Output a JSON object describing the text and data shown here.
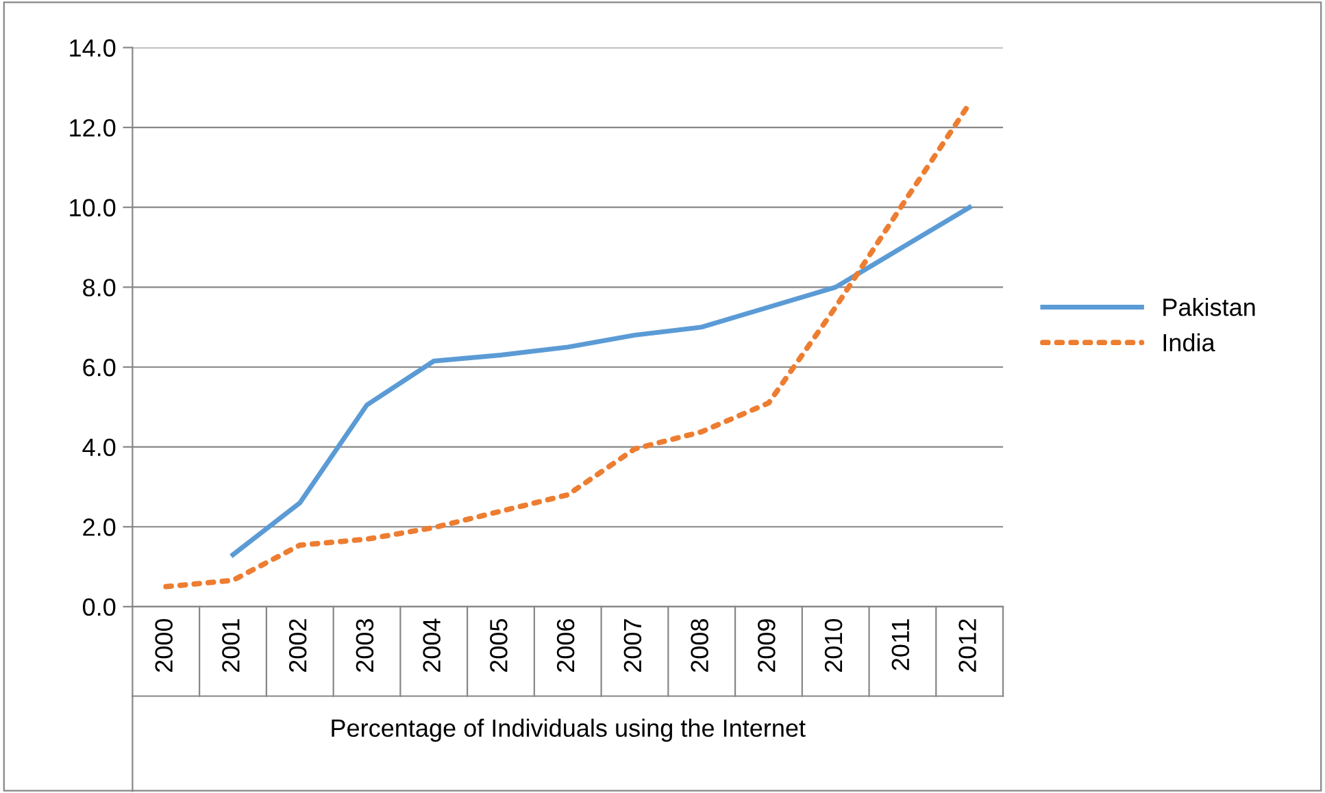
{
  "chart_data": {
    "type": "line",
    "xlabel": "Percentage of Individuals using the Internet",
    "categories": [
      "2000",
      "2001",
      "2002",
      "2003",
      "2004",
      "2005",
      "2006",
      "2007",
      "2008",
      "2009",
      "2010",
      "2011",
      "2012"
    ],
    "series": [
      {
        "name": "Pakistan",
        "color": "#5b9bd5",
        "line_style": "solid",
        "values": [
          null,
          1.3,
          2.6,
          5.05,
          6.15,
          6.3,
          6.5,
          6.8,
          7.0,
          7.5,
          8.0,
          9.0,
          10.0
        ]
      },
      {
        "name": "India",
        "color": "#ed7d31",
        "line_style": "dotted",
        "values": [
          0.5,
          0.66,
          1.54,
          1.69,
          1.98,
          2.39,
          2.8,
          3.95,
          4.38,
          5.1,
          7.5,
          10.07,
          12.6
        ]
      }
    ],
    "ylim": [
      0,
      14
    ],
    "yticks": [
      {
        "value": 0,
        "label": "0.0"
      },
      {
        "value": 2,
        "label": "2.0"
      },
      {
        "value": 4,
        "label": "4.0"
      },
      {
        "value": 6,
        "label": "6.0"
      },
      {
        "value": 8,
        "label": "8.0"
      },
      {
        "value": 10,
        "label": "10.0"
      },
      {
        "value": 12,
        "label": "12.0"
      },
      {
        "value": 14,
        "label": "14.0"
      }
    ],
    "grid": "y",
    "legend": "right",
    "marker": "none"
  }
}
